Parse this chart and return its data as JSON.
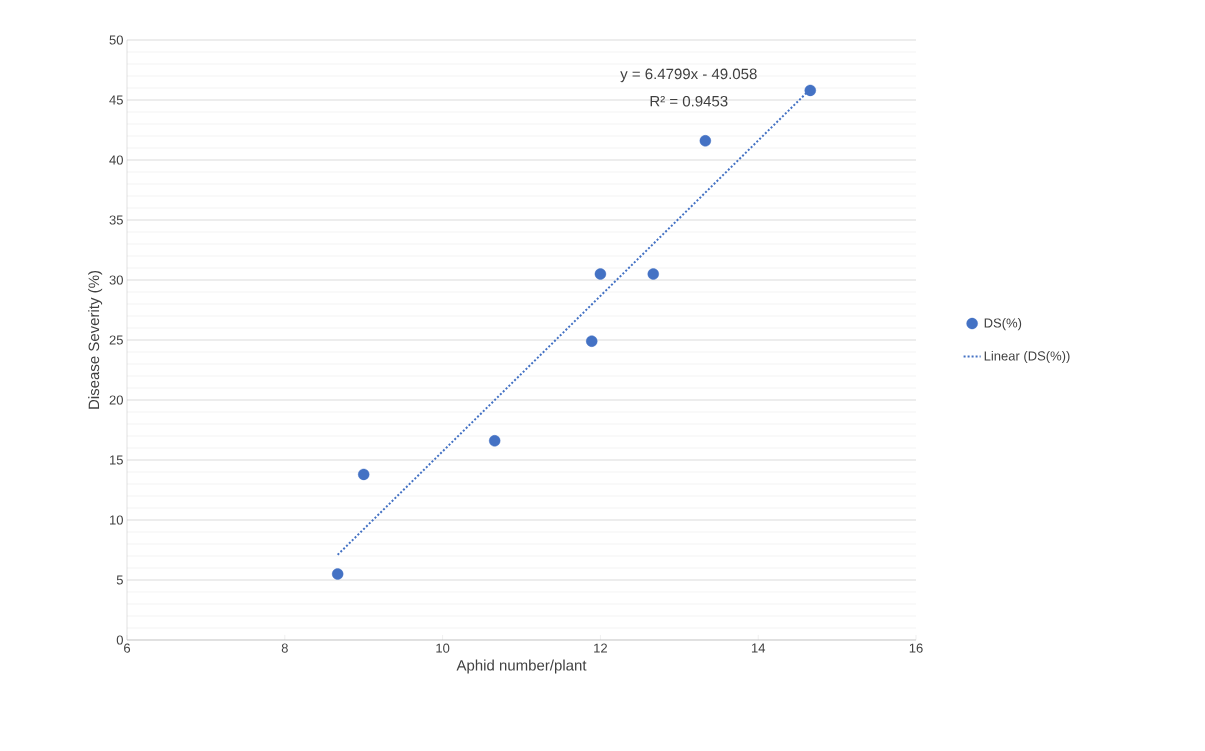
{
  "chart_data": {
    "type": "scatter",
    "xlabel": "Aphid number/plant",
    "ylabel": "Disease Severity (%)",
    "xlim": [
      6,
      16
    ],
    "ylim": [
      0,
      50
    ],
    "xticks": [
      6,
      8,
      10,
      12,
      14,
      16
    ],
    "yticks": [
      0,
      5,
      10,
      15,
      20,
      25,
      30,
      35,
      40,
      45,
      50
    ],
    "grid": "y",
    "legend": "right",
    "marker": "circle",
    "annotations": [
      "y = 6.4799x - 49.058",
      "R² = 0.9453"
    ],
    "series": [
      {
        "name": "DS(%)",
        "color": "#4472c4",
        "x": [
          8.67,
          9.0,
          10.66,
          11.89,
          12.0,
          12.67,
          13.33,
          14.66
        ],
        "values": [
          5.5,
          13.8,
          16.6,
          24.9,
          30.5,
          30.5,
          41.6,
          45.8
        ]
      },
      {
        "name": "Linear (DS(%))",
        "color": "#4472c4",
        "type": "line",
        "marker": "none",
        "line_style": "dotted",
        "x": [
          8.67,
          14.66
        ],
        "values": [
          7.1,
          45.9
        ]
      }
    ]
  }
}
